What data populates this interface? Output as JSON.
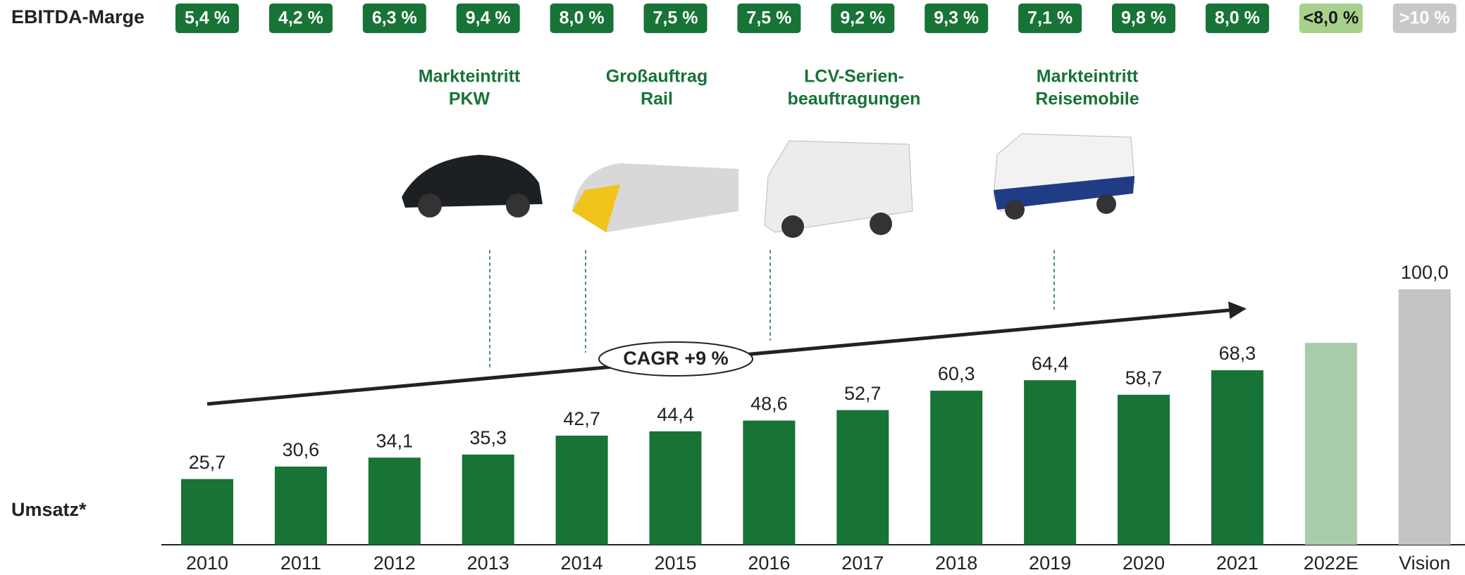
{
  "chart_data": {
    "type": "bar",
    "categories": [
      "2010",
      "2011",
      "2012",
      "2013",
      "2014",
      "2015",
      "2016",
      "2017",
      "2018",
      "2019",
      "2020",
      "2021",
      "2022E",
      "Vision"
    ],
    "values": [
      25.7,
      30.6,
      34.1,
      35.3,
      42.7,
      44.4,
      48.6,
      52.7,
      60.3,
      64.4,
      58.7,
      68.3,
      79,
      100.0
    ],
    "value_labels": [
      "25,7",
      "30,6",
      "34,1",
      "35,3",
      "42,7",
      "44,4",
      "48,6",
      "52,7",
      "60,3",
      "64,4",
      "58,7",
      "68,3",
      null,
      "100,0"
    ],
    "colors": [
      "#177336",
      "#177336",
      "#177336",
      "#177336",
      "#177336",
      "#177336",
      "#177336",
      "#177336",
      "#177336",
      "#177336",
      "#177336",
      "#177336",
      "#a9cca9",
      "#c3c3c3"
    ],
    "ylim": [
      0,
      100
    ],
    "y_label": "Umsatz*",
    "trend_label": "CAGR +9 %",
    "ebitda": {
      "label": "EBITDA-Marge",
      "values": [
        "5,4 %",
        "4,2 %",
        "6,3 %",
        "9,4 %",
        "8,0 %",
        "7,5 %",
        "7,5 %",
        "9,2 %",
        "9,3 %",
        "7,1 %",
        "9,8 %",
        "8,0 %",
        "<8,0 %",
        ">10 %"
      ],
      "colors": [
        "#177336",
        "#177336",
        "#177336",
        "#177336",
        "#177336",
        "#177336",
        "#177336",
        "#177336",
        "#177336",
        "#177336",
        "#177336",
        "#177336",
        "#a8d08d",
        "#c8c8c8"
      ],
      "text_colors": [
        "#ffffff",
        "#ffffff",
        "#ffffff",
        "#ffffff",
        "#ffffff",
        "#ffffff",
        "#ffffff",
        "#ffffff",
        "#ffffff",
        "#ffffff",
        "#ffffff",
        "#ffffff",
        "#1a1a1a",
        "#ffffff"
      ]
    },
    "annotations": [
      {
        "lines": [
          "Markteintritt",
          "PKW"
        ]
      },
      {
        "lines": [
          "Großauftrag",
          "Rail"
        ]
      },
      {
        "lines": [
          "LCV-Serien-",
          "beauftragungen"
        ]
      },
      {
        "lines": [
          "Markteintritt",
          "Reisemobile"
        ]
      }
    ]
  }
}
